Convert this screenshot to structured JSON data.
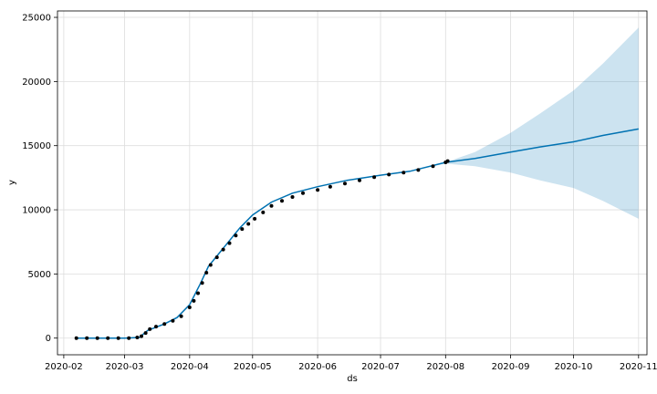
{
  "chart_data": {
    "type": "line",
    "xlabel": "ds",
    "ylabel": "y",
    "xlim": [
      "2020-01-29",
      "2020-11-05"
    ],
    "ylim": [
      -1300,
      25500
    ],
    "grid": true,
    "x_ticks": [
      "2020-02",
      "2020-03",
      "2020-04",
      "2020-05",
      "2020-06",
      "2020-07",
      "2020-08",
      "2020-09",
      "2020-10",
      "2020-11"
    ],
    "y_ticks": [
      0,
      5000,
      10000,
      15000,
      20000,
      25000
    ],
    "colors": {
      "forecast_line": "#0072B2",
      "uncertainty_band": "#0072B2",
      "observed_points": "#000000",
      "grid": "#dddddd"
    },
    "series": [
      {
        "role": "forecast",
        "x": [
          "2020-02-07",
          "2020-02-15",
          "2020-03-01",
          "2020-03-08",
          "2020-03-12",
          "2020-03-20",
          "2020-03-26",
          "2020-04-01",
          "2020-04-06",
          "2020-04-10",
          "2020-04-15",
          "2020-04-20",
          "2020-04-25",
          "2020-05-01",
          "2020-05-10",
          "2020-05-20",
          "2020-06-01",
          "2020-06-15",
          "2020-07-01",
          "2020-07-15",
          "2020-08-01",
          "2020-08-15",
          "2020-09-01",
          "2020-09-15",
          "2020-10-01",
          "2020-10-15",
          "2020-11-01"
        ],
        "y": [
          0,
          0,
          0,
          50,
          600,
          1100,
          1600,
          2600,
          4200,
          5600,
          6600,
          7600,
          8600,
          9600,
          10600,
          11300,
          11800,
          12300,
          12700,
          13000,
          13700,
          14000,
          14500,
          14900,
          15300,
          15800,
          16300
        ],
        "lower": [
          0,
          0,
          0,
          50,
          600,
          1100,
          1600,
          2600,
          4200,
          5600,
          6600,
          7600,
          8600,
          9600,
          10600,
          11300,
          11800,
          12300,
          12700,
          13000,
          13600,
          13400,
          12900,
          12300,
          11700,
          10700,
          9300
        ],
        "upper": [
          0,
          0,
          0,
          50,
          600,
          1100,
          1600,
          2600,
          4200,
          5600,
          6600,
          7600,
          8600,
          9600,
          10600,
          11300,
          11800,
          12300,
          12700,
          13000,
          13700,
          14500,
          16000,
          17500,
          19300,
          21400,
          24200
        ]
      },
      {
        "role": "observed",
        "x": [
          "2020-02-07",
          "2020-02-12",
          "2020-02-17",
          "2020-02-22",
          "2020-02-27",
          "2020-03-03",
          "2020-03-07",
          "2020-03-09",
          "2020-03-11",
          "2020-03-13",
          "2020-03-16",
          "2020-03-20",
          "2020-03-24",
          "2020-03-28",
          "2020-04-01",
          "2020-04-03",
          "2020-04-05",
          "2020-04-07",
          "2020-04-09",
          "2020-04-11",
          "2020-04-14",
          "2020-04-17",
          "2020-04-20",
          "2020-04-23",
          "2020-04-26",
          "2020-04-29",
          "2020-05-02",
          "2020-05-06",
          "2020-05-10",
          "2020-05-15",
          "2020-05-20",
          "2020-05-25",
          "2020-06-01",
          "2020-06-07",
          "2020-06-14",
          "2020-06-21",
          "2020-06-28",
          "2020-07-05",
          "2020-07-12",
          "2020-07-19",
          "2020-07-26",
          "2020-08-01",
          "2020-08-02"
        ],
        "y": [
          0,
          0,
          0,
          0,
          0,
          0,
          50,
          150,
          400,
          700,
          900,
          1100,
          1350,
          1700,
          2400,
          2900,
          3500,
          4300,
          5100,
          5700,
          6300,
          6900,
          7400,
          8000,
          8500,
          8900,
          9300,
          9800,
          10300,
          10700,
          11000,
          11300,
          11550,
          11800,
          12050,
          12300,
          12550,
          12750,
          12900,
          13100,
          13400,
          13700,
          13800
        ]
      }
    ]
  }
}
